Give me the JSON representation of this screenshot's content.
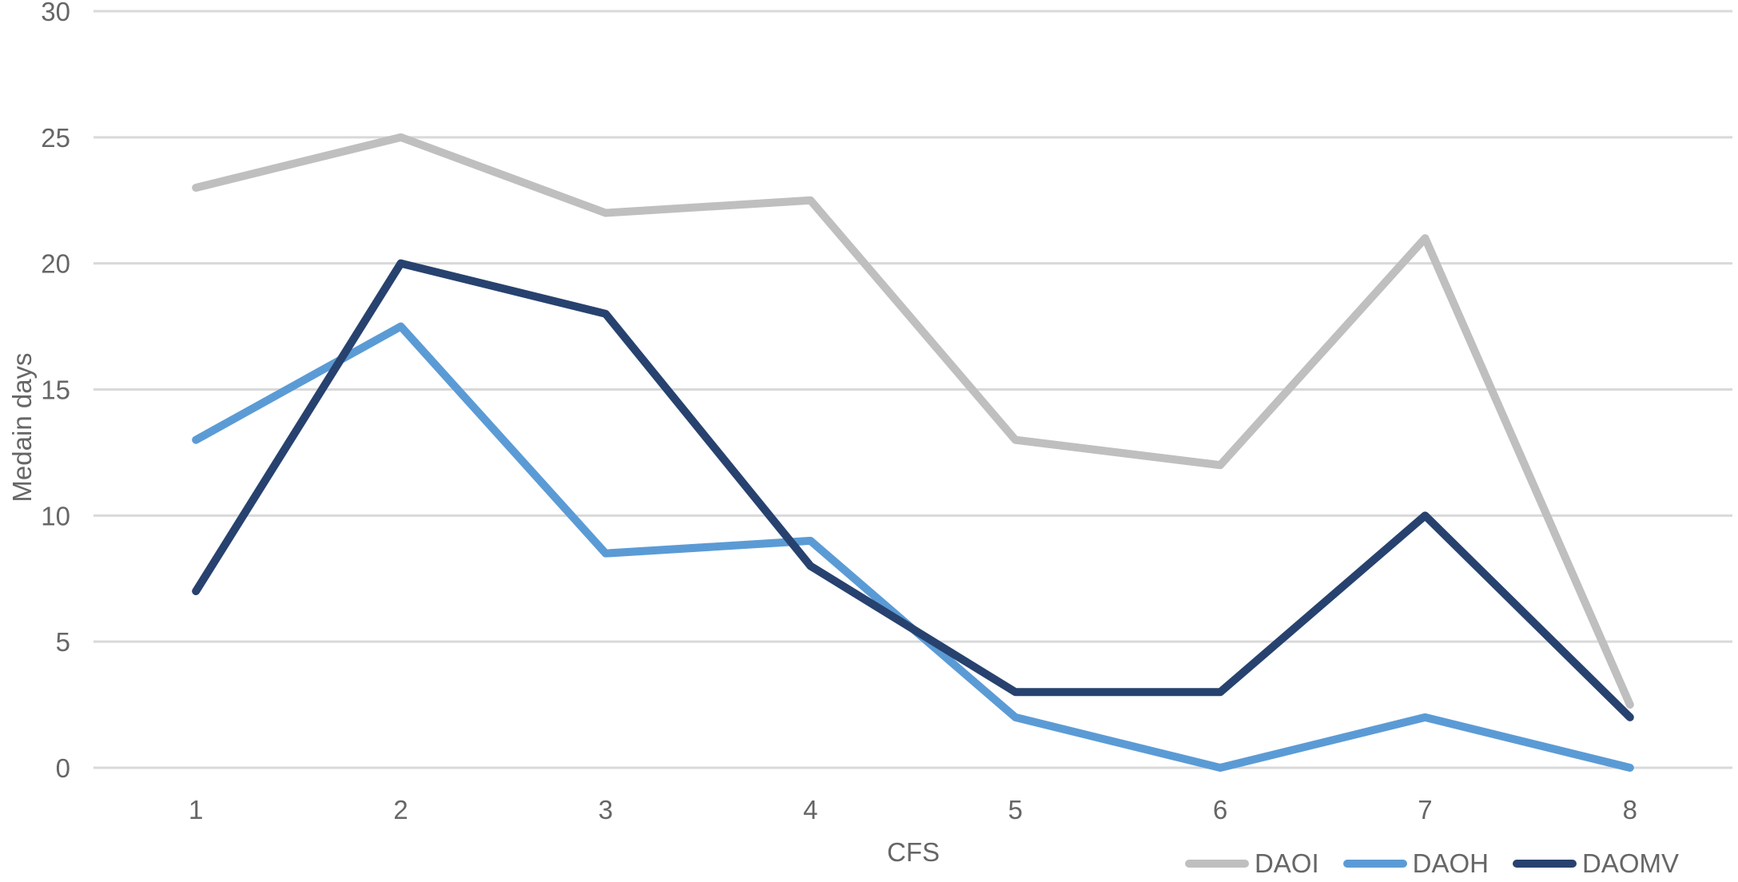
{
  "chart_data": {
    "type": "line",
    "title": "",
    "xlabel": "CFS",
    "ylabel": "Medain days",
    "categories": [
      "1",
      "2",
      "3",
      "4",
      "5",
      "6",
      "7",
      "8"
    ],
    "ylim": [
      0,
      30
    ],
    "ytick_step": 5,
    "yticks": [
      0,
      5,
      10,
      15,
      20,
      25,
      30
    ],
    "grid": "horizontal",
    "legend_position": "bottom-right",
    "series": [
      {
        "name": "DAOI",
        "color": "#BFBFBF",
        "values": [
          23,
          25,
          22,
          22.5,
          13,
          12,
          21,
          2.5
        ]
      },
      {
        "name": "DAOH",
        "color": "#5B9BD5",
        "values": [
          13,
          17.5,
          8.5,
          9,
          2,
          0,
          2,
          0
        ]
      },
      {
        "name": "DAOMV",
        "color": "#27426F",
        "values": [
          7,
          20,
          18,
          8,
          3,
          3,
          10,
          2
        ]
      }
    ]
  },
  "style": {
    "background": "#FFFFFF",
    "grid_color": "#D9D9D9",
    "text_color": "#666666"
  }
}
